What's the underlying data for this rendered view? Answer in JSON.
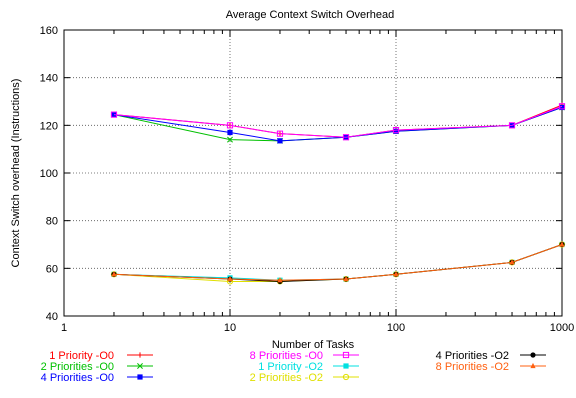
{
  "chart_data": {
    "type": "line",
    "title": "Average Context Switch Overhead",
    "xlabel": "Number of Tasks",
    "ylabel": "Context Switch overhead (Instructions)",
    "xscale": "log",
    "xlim": [
      1,
      1000
    ],
    "ylim": [
      40,
      160
    ],
    "xticks": [
      1,
      10,
      100,
      1000
    ],
    "yticks": [
      40,
      60,
      80,
      100,
      120,
      140,
      160
    ],
    "xticklabels": [
      "1",
      "10",
      "100",
      "1000"
    ],
    "yticklabels": [
      "40",
      "60",
      "80",
      "100",
      "120",
      "140",
      "160"
    ],
    "grid": true,
    "legend_position": "bottom",
    "x": [
      2,
      10,
      20,
      50,
      100,
      500,
      1000
    ],
    "series": [
      {
        "name": "1 Priority  -O0",
        "color": "#ff0000",
        "marker": "plus",
        "values": [
          124.5,
          120,
          116.5,
          115,
          118,
          120,
          128.5
        ]
      },
      {
        "name": "2 Priorities -O0",
        "color": "#00c000",
        "marker": "x",
        "values": [
          124.5,
          114,
          113.5,
          115,
          117.5,
          120,
          127.5
        ]
      },
      {
        "name": "4 Priorities -O0",
        "color": "#0000ff",
        "marker": "square-filled",
        "values": [
          124.5,
          117,
          113.5,
          115,
          117.5,
          120,
          127.5
        ]
      },
      {
        "name": "8 Priorities -O0",
        "color": "#ff00ff",
        "marker": "square-open",
        "values": [
          124.5,
          120,
          116.5,
          115,
          118,
          120,
          128
        ]
      },
      {
        "name": "1 Priority  -O2",
        "color": "#00e0e0",
        "marker": "square-filled",
        "values": [
          57.5,
          56,
          55,
          55.5,
          57.5,
          62.5,
          70
        ]
      },
      {
        "name": "2 Priorities -O2",
        "color": "#e0e000",
        "marker": "circle",
        "values": [
          57.5,
          54.5,
          54.5,
          55.5,
          57.5,
          62.5,
          70
        ]
      },
      {
        "name": "4 Priorities -O2",
        "color": "#000000",
        "marker": "circle-filled",
        "values": [
          57.5,
          55.5,
          54.5,
          55.5,
          57.5,
          62.5,
          70
        ]
      },
      {
        "name": "8 Priorities -O2",
        "color": "#ff6010",
        "marker": "triangle",
        "values": [
          57.5,
          55.5,
          55,
          55.5,
          57.5,
          62.5,
          70
        ]
      }
    ]
  }
}
